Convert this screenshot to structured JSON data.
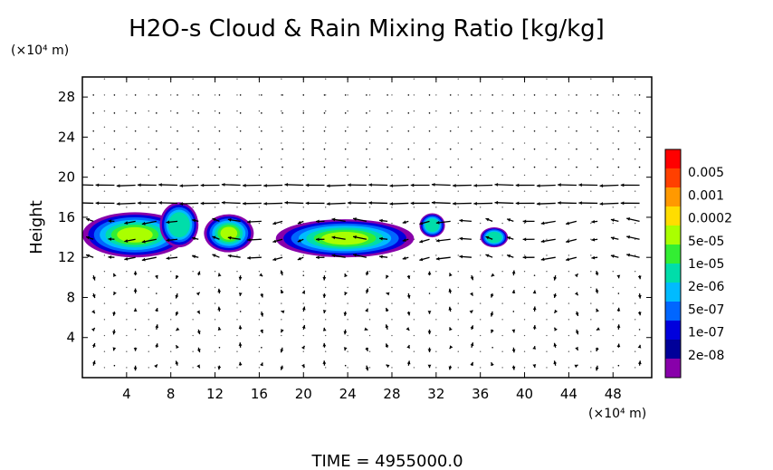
{
  "chart_data": {
    "type": "heatmap",
    "title": "H2O-s Cloud & Rain Mixing Ratio [kg/kg]",
    "ylabel": "Height",
    "y_unit_label": "(×10⁴ m)",
    "x_unit_label": "(×10⁴ m)",
    "xlim": [
      0,
      51.5
    ],
    "ylim": [
      0,
      30
    ],
    "x_ticks": [
      4,
      8,
      12,
      16,
      20,
      24,
      28,
      32,
      36,
      40,
      44,
      48
    ],
    "y_ticks": [
      4,
      8,
      12,
      16,
      20,
      24,
      28
    ],
    "grid": "dotted",
    "colorbar": {
      "labels": [
        "0.005",
        "0.001",
        "0.0002",
        "5e-05",
        "1e-05",
        "2e-06",
        "5e-07",
        "1e-07",
        "2e-08"
      ],
      "colors": [
        "#ff0000",
        "#ff4000",
        "#ff9900",
        "#ffdd00",
        "#aaff00",
        "#33ee33",
        "#00ddaa",
        "#00bbff",
        "#0066ff",
        "#0000dd",
        "#000099",
        "#8800aa"
      ]
    },
    "cloud_regions": [
      {
        "x_range": [
          0,
          9.5
        ],
        "y_range": [
          12,
          16.5
        ],
        "level": "5e-05"
      },
      {
        "x_range": [
          7,
          10.5
        ],
        "y_range": [
          13,
          17.5
        ],
        "level": "2e-06"
      },
      {
        "x_range": [
          11,
          15.5
        ],
        "y_range": [
          12.5,
          16.3
        ],
        "level": "5e-05"
      },
      {
        "x_range": [
          17.5,
          30
        ],
        "y_range": [
          12,
          15.8
        ],
        "level": "5e-05"
      },
      {
        "x_range": [
          30.5,
          32.8
        ],
        "y_range": [
          14,
          16.4
        ],
        "level": "2e-06"
      },
      {
        "x_range": [
          36,
          38.5
        ],
        "y_range": [
          13,
          15
        ],
        "level": "2e-06"
      }
    ],
    "wind_vectors": "jet eastward-to-westward near height 17-20, weak elsewhere"
  },
  "footer": {
    "time_label": "TIME = 4955000.0"
  }
}
